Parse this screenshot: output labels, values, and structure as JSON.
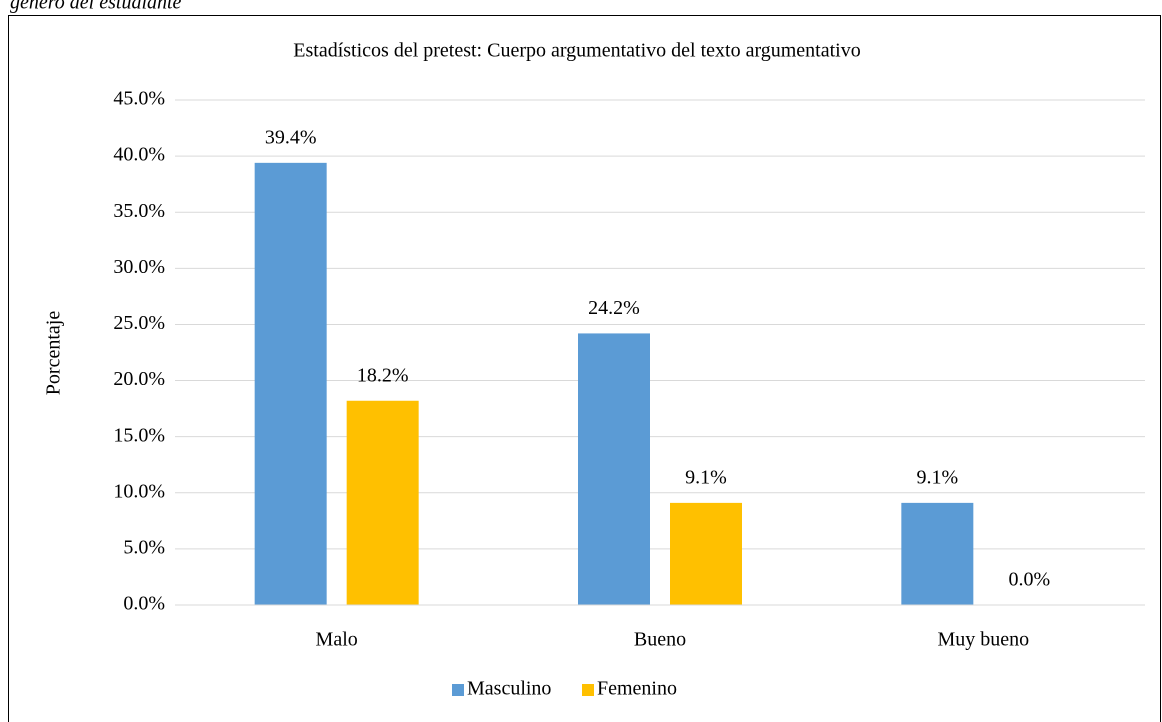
{
  "caption": "género del estudiante",
  "chart_data": {
    "type": "bar",
    "title": "Estadísticos del pretest: Cuerpo argumentativo del texto argumentativo",
    "ylabel": "Porcentaje",
    "categories": [
      "Malo",
      "Bueno",
      "Muy bueno"
    ],
    "series": [
      {
        "name": "Masculino",
        "color": "#5b9bd5",
        "values": [
          39.4,
          24.2,
          9.1
        ],
        "value_labels": [
          "39.4%",
          "24.2%",
          "9.1%"
        ]
      },
      {
        "name": "Femenino",
        "color": "#ffc000",
        "values": [
          18.2,
          9.1,
          0.0
        ],
        "value_labels": [
          "18.2%",
          "9.1%",
          "0.0%"
        ]
      }
    ],
    "ylim": [
      0,
      45
    ],
    "yticks": [
      {
        "value": 0,
        "label": "0.0%"
      },
      {
        "value": 5,
        "label": "5.0%"
      },
      {
        "value": 10,
        "label": "10.0%"
      },
      {
        "value": 15,
        "label": "15.0%"
      },
      {
        "value": 20,
        "label": "20.0%"
      },
      {
        "value": 25,
        "label": "25.0%"
      },
      {
        "value": 30,
        "label": "30.0%"
      },
      {
        "value": 35,
        "label": "35.0%"
      },
      {
        "value": 40,
        "label": "40.0%"
      },
      {
        "value": 45,
        "label": "45.0%"
      }
    ],
    "grid": true,
    "legend": "bottom"
  }
}
